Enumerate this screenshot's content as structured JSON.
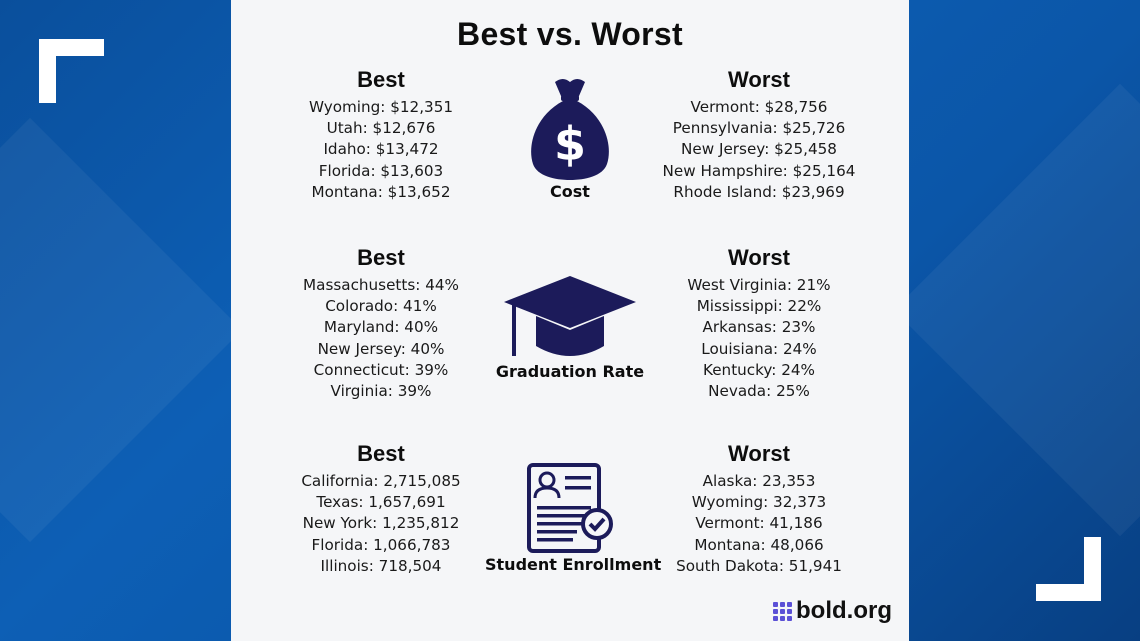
{
  "title": "Best vs. Worst",
  "colors": {
    "icon": "#1c1b5a",
    "background": "#0b56a8",
    "panel": "#f5f6f8",
    "logo_accent": "#5b50d6"
  },
  "sections": [
    {
      "icon": "money-bag-icon",
      "label": "Cost",
      "best": {
        "heading": "Best",
        "items": [
          "Wyoming: $12,351",
          "Utah: $12,676",
          "Idaho: $13,472",
          "Florida: $13,603",
          "Montana: $13,652"
        ]
      },
      "worst": {
        "heading": "Worst",
        "items": [
          "Vermont: $28,756",
          "Pennsylvania: $25,726",
          "New Jersey: $25,458",
          "New Hampshire: $25,164",
          "Rhode Island: $23,969"
        ]
      }
    },
    {
      "icon": "graduation-cap-icon",
      "label": "Graduation Rate",
      "best": {
        "heading": "Best",
        "items": [
          "Massachusetts: 44%",
          "Colorado: 41%",
          "Maryland: 40%",
          "New Jersey: 40%",
          "Connecticut: 39%",
          "Virginia: 39%"
        ]
      },
      "worst": {
        "heading": "Worst",
        "items": [
          "West Virginia: 21%",
          "Mississippi: 22%",
          "Arkansas: 23%",
          "Louisiana: 24%",
          "Kentucky: 24%",
          "Nevada: 25%"
        ]
      }
    },
    {
      "icon": "resume-document-icon",
      "label": "Student Enrollment",
      "best": {
        "heading": "Best",
        "items": [
          "California: 2,715,085",
          "Texas: 1,657,691",
          "New York: 1,235,812",
          "Florida: 1,066,783",
          "Illinois: 718,504"
        ]
      },
      "worst": {
        "heading": "Worst",
        "items": [
          "Alaska: 23,353",
          "Wyoming: 32,373",
          "Vermont: 41,186",
          "Montana: 48,066",
          "South Dakota: 51,941"
        ]
      }
    }
  ],
  "logo": {
    "text": "bold.org"
  }
}
